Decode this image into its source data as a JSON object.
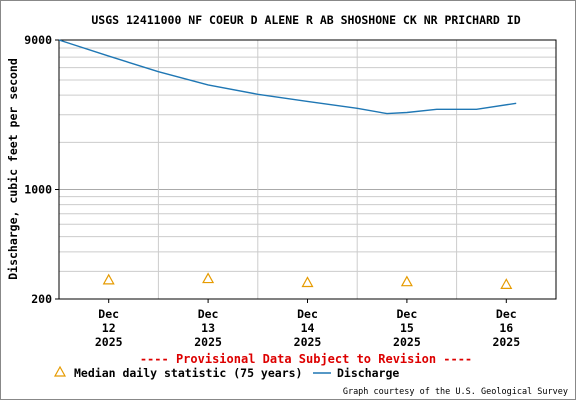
{
  "chart_data": {
    "type": "line",
    "title": "USGS 12411000 NF COEUR D ALENE R AB SHOSHONE CK NR PRICHARD ID",
    "ylabel": "Discharge, cubic feet per second",
    "xlabel": "",
    "yscale": "log",
    "ylim": [
      200,
      9000
    ],
    "yticks": [
      {
        "v": 9000,
        "label": "9000"
      },
      {
        "v": 1000,
        "label": "1000"
      },
      {
        "v": 200,
        "label": "200"
      }
    ],
    "xlim": [
      0,
      5
    ],
    "xticks": [
      {
        "x": 0.5,
        "lines": [
          "Dec",
          "12",
          "2025"
        ]
      },
      {
        "x": 1.5,
        "lines": [
          "Dec",
          "13",
          "2025"
        ]
      },
      {
        "x": 2.5,
        "lines": [
          "Dec",
          "14",
          "2025"
        ]
      },
      {
        "x": 3.5,
        "lines": [
          "Dec",
          "15",
          "2025"
        ]
      },
      {
        "x": 4.5,
        "lines": [
          "Dec",
          "16",
          "2025"
        ]
      }
    ],
    "series": [
      {
        "name": "Discharge",
        "color": "#1f77b4",
        "points": [
          [
            0,
            9000
          ],
          [
            0.5,
            7100
          ],
          [
            1,
            5650
          ],
          [
            1.5,
            4650
          ],
          [
            2,
            4050
          ],
          [
            2.5,
            3650
          ],
          [
            3,
            3300
          ],
          [
            3.3,
            3050
          ],
          [
            3.5,
            3100
          ],
          [
            3.8,
            3250
          ],
          [
            4.2,
            3250
          ],
          [
            4.6,
            3550
          ]
        ]
      },
      {
        "name": "Median daily statistic (75 years)",
        "color": "#e69b00",
        "marker": "triangle",
        "points": [
          [
            0.5,
            265
          ],
          [
            1.5,
            270
          ],
          [
            2.5,
            255
          ],
          [
            3.5,
            258
          ],
          [
            4.5,
            248
          ]
        ]
      }
    ],
    "grid": true,
    "vertical_lines_at": [
      1,
      2,
      3,
      4
    ],
    "legend_position": "bottom"
  },
  "provisional_note": "---- Provisional Data Subject to Revision ----",
  "provisional_color": "#dd0000",
  "legend": {
    "median_label": "Median daily statistic (75 years)",
    "discharge_label": "Discharge"
  },
  "credit": "Graph courtesy of the U.S. Geological Survey"
}
